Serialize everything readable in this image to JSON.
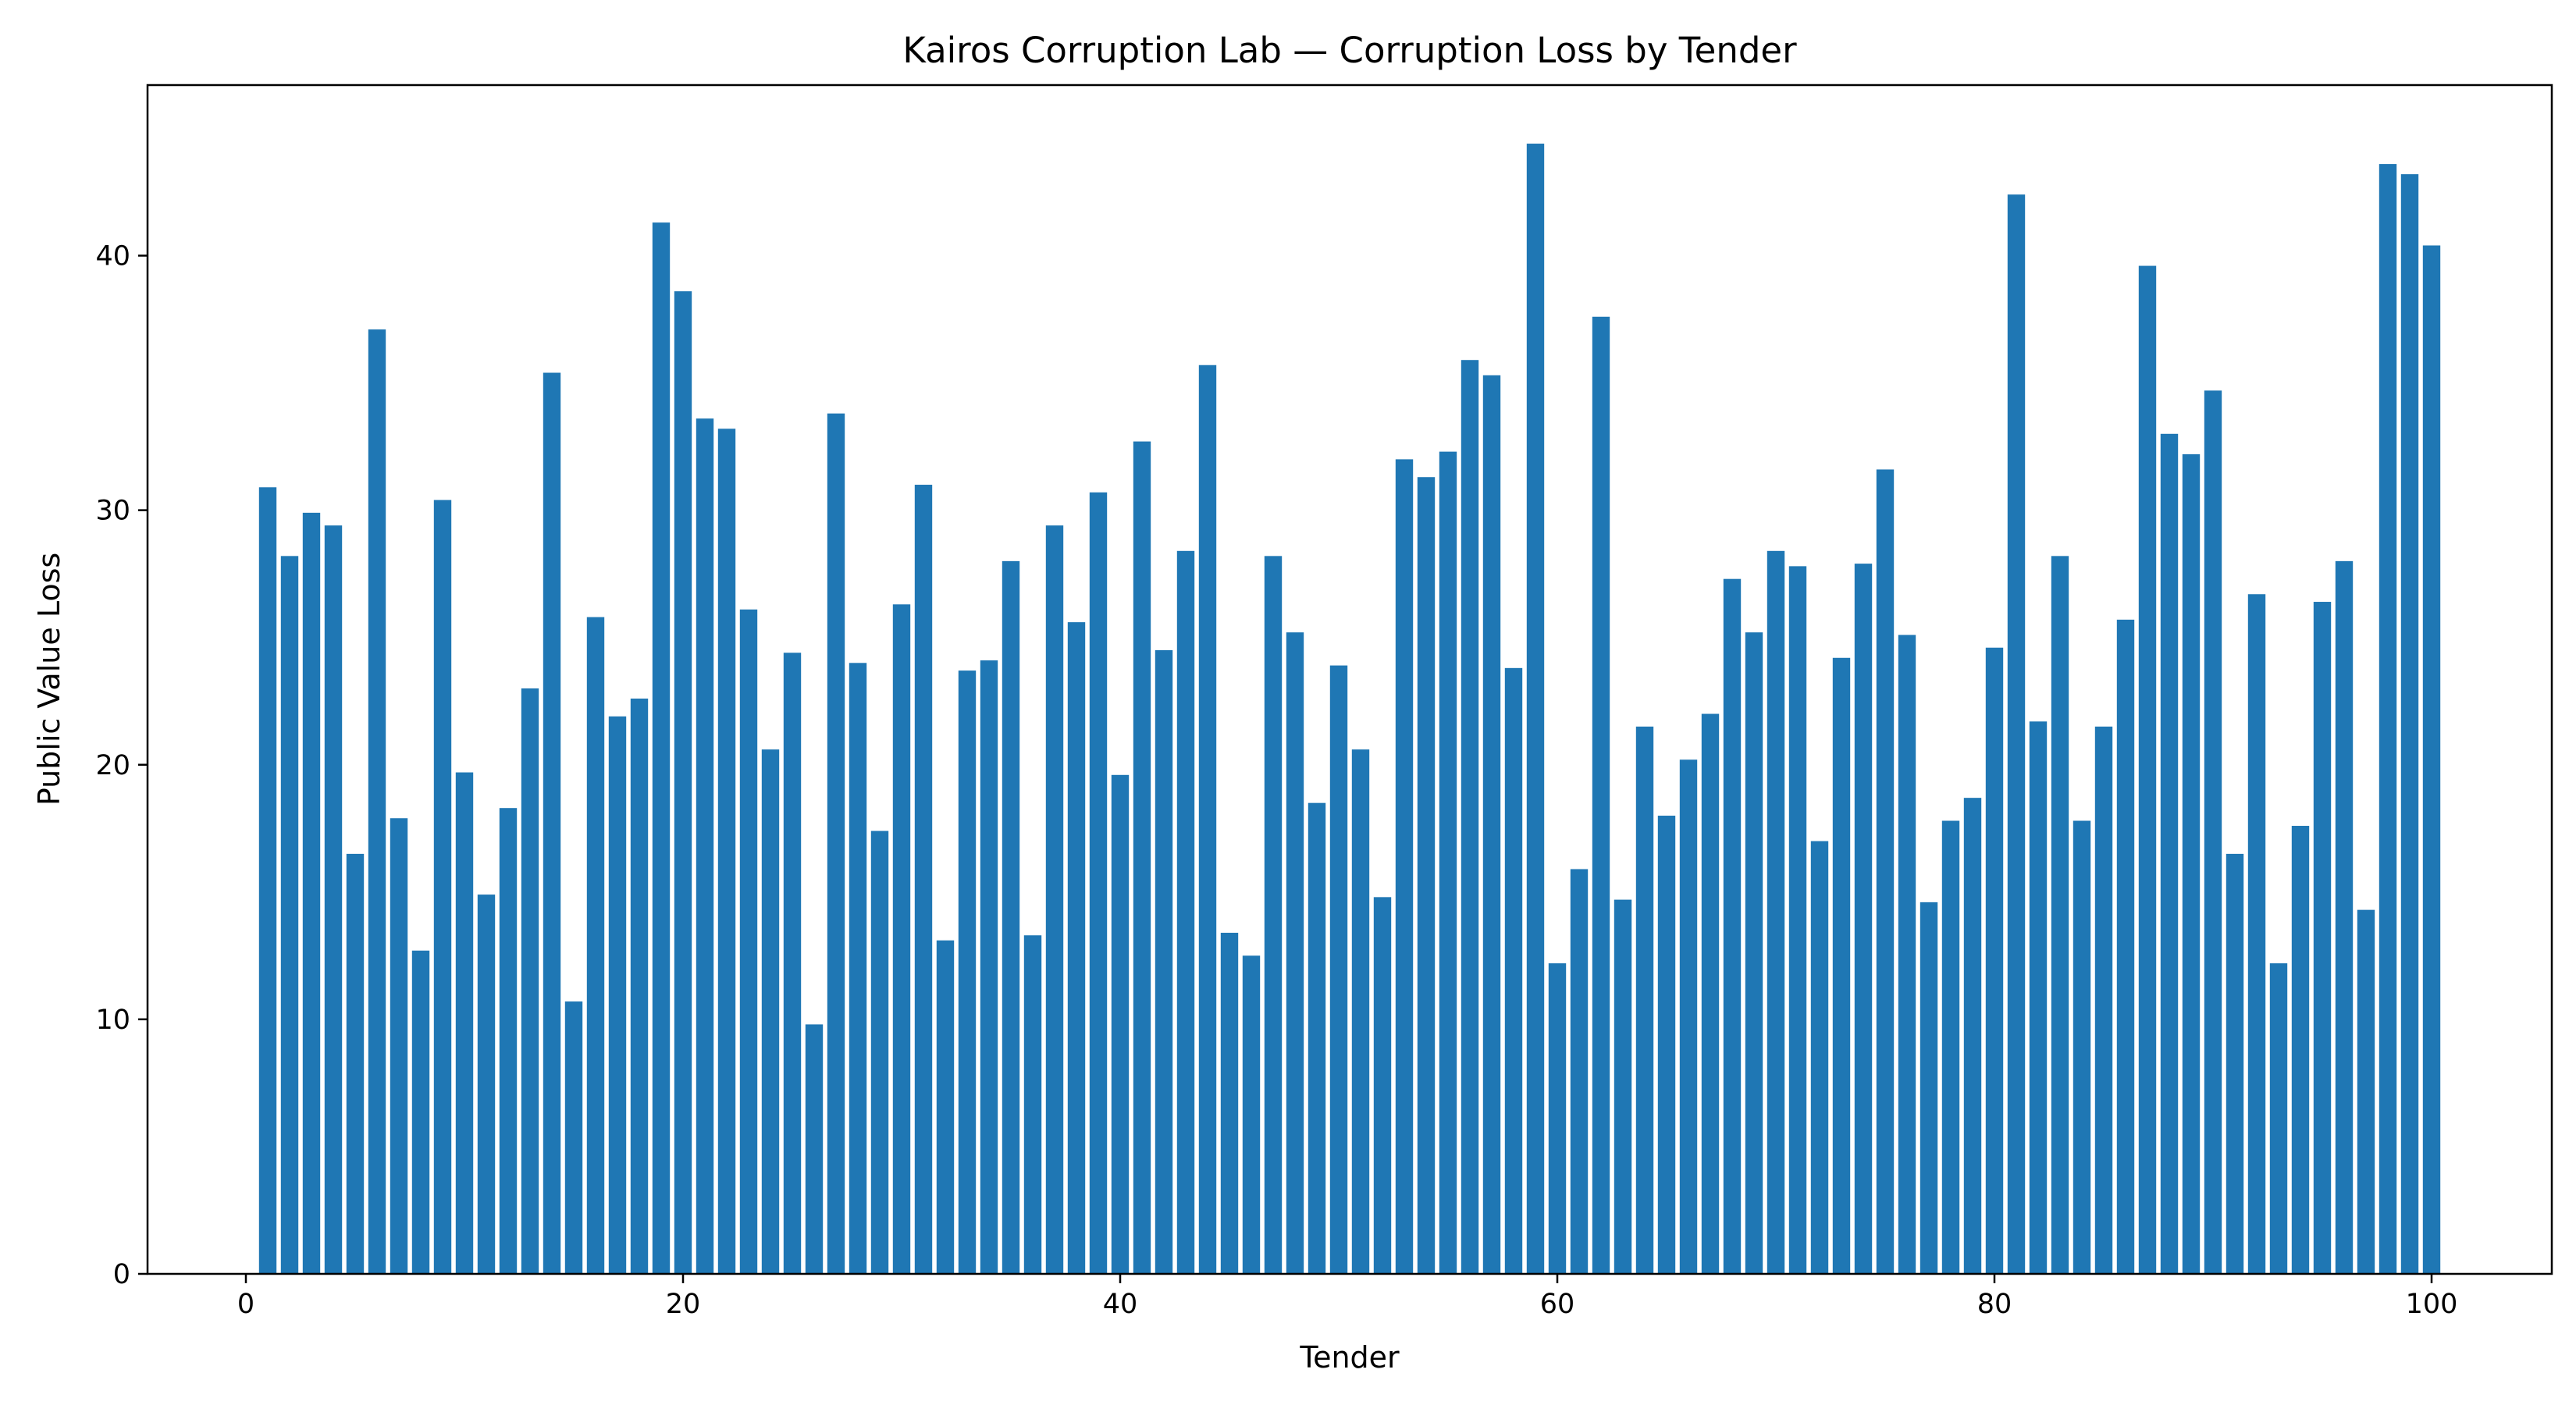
{
  "chart_data": {
    "type": "bar",
    "title": "Kairos Corruption Lab — Corruption Loss by Tender",
    "xlabel": "Tender",
    "ylabel": "Public Value Loss",
    "xlim": [
      -4.5,
      105.5
    ],
    "ylim": [
      0,
      46.7
    ],
    "xticks": [
      0,
      20,
      40,
      60,
      80,
      100
    ],
    "yticks": [
      0,
      10,
      20,
      30,
      40
    ],
    "grid": false,
    "bar_color": "#1f77b4",
    "x": [
      1,
      2,
      3,
      4,
      5,
      6,
      7,
      8,
      9,
      10,
      11,
      12,
      13,
      14,
      15,
      16,
      17,
      18,
      19,
      20,
      21,
      22,
      23,
      24,
      25,
      26,
      27,
      28,
      29,
      30,
      31,
      32,
      33,
      34,
      35,
      36,
      37,
      38,
      39,
      40,
      41,
      42,
      43,
      44,
      45,
      46,
      47,
      48,
      49,
      50,
      51,
      52,
      53,
      54,
      55,
      56,
      57,
      58,
      59,
      60,
      61,
      62,
      63,
      64,
      65,
      66,
      67,
      68,
      69,
      70,
      71,
      72,
      73,
      74,
      75,
      76,
      77,
      78,
      79,
      80,
      81,
      82,
      83,
      84,
      85,
      86,
      87,
      88,
      89,
      90,
      91,
      92,
      93,
      94,
      95,
      96,
      97,
      98,
      99,
      100
    ],
    "values": [
      30.9,
      28.2,
      29.9,
      29.4,
      16.5,
      37.1,
      17.9,
      12.7,
      30.4,
      19.7,
      14.9,
      18.3,
      23.0,
      35.4,
      10.7,
      25.8,
      21.9,
      22.6,
      41.3,
      38.6,
      33.6,
      33.2,
      26.1,
      20.6,
      24.4,
      9.8,
      33.8,
      24.0,
      17.4,
      26.3,
      31.0,
      13.1,
      23.7,
      24.1,
      28.0,
      13.3,
      29.4,
      25.6,
      30.7,
      19.6,
      32.7,
      24.5,
      28.4,
      35.7,
      13.4,
      12.5,
      28.2,
      25.2,
      18.5,
      23.9,
      20.6,
      14.8,
      32.0,
      31.3,
      32.3,
      35.9,
      35.3,
      23.8,
      44.4,
      12.2,
      15.9,
      37.6,
      14.7,
      21.5,
      18.0,
      20.2,
      22.0,
      27.3,
      25.2,
      28.4,
      27.8,
      17.0,
      24.2,
      27.9,
      31.6,
      25.1,
      14.6,
      17.8,
      18.7,
      24.6,
      42.4,
      21.7,
      28.2,
      17.8,
      21.5,
      25.7,
      39.6,
      33.0,
      32.2,
      34.7,
      16.5,
      26.7,
      12.2,
      17.6,
      26.4,
      28.0,
      14.3,
      43.6,
      43.2,
      40.4
    ]
  }
}
